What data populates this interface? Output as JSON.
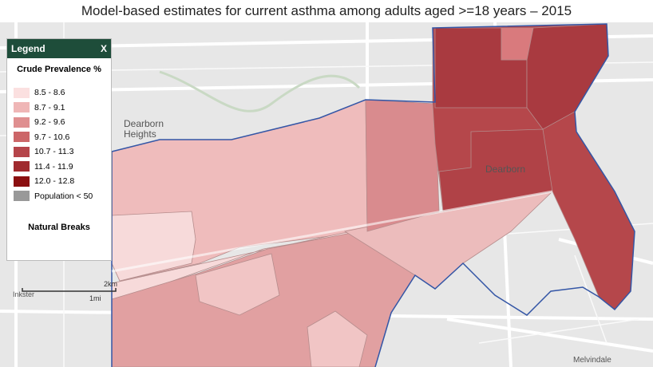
{
  "title": "Model-based estimates for current asthma among adults aged >=18 years – 2015",
  "legend": {
    "header": "Legend",
    "close": "X",
    "subtitle": "Crude Prevalence %",
    "items": [
      {
        "label": "8.5 - 8.6",
        "color": "#fbe0e0"
      },
      {
        "label": "8.7 - 9.1",
        "color": "#efb6b6"
      },
      {
        "label": "9.2 - 9.6",
        "color": "#df8f90"
      },
      {
        "label": "9.7 - 10.6",
        "color": "#cc6668"
      },
      {
        "label": "10.7 - 11.3",
        "color": "#b5454a"
      },
      {
        "label": "11.4 - 11.9",
        "color": "#a02a2e"
      },
      {
        "label": "12.0 - 12.8",
        "color": "#8b0f10"
      },
      {
        "label": "Population < 50",
        "color": "#999999"
      }
    ],
    "footer": "Natural Breaks"
  },
  "map_labels": {
    "dearborn_heights": "Dearborn\nHeights",
    "dearborn": "Dearborn",
    "inkster": "Inkster",
    "melvindale": "Melvindale"
  },
  "scale": {
    "km": "2km",
    "mi": "1mi"
  }
}
